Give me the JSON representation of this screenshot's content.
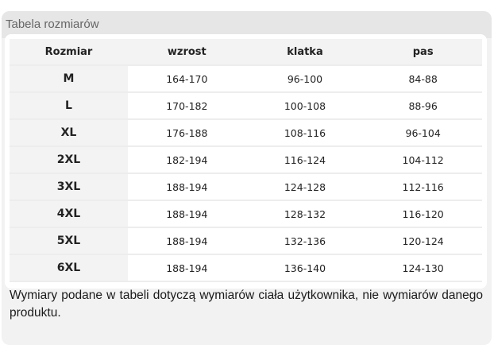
{
  "title": "Tabela rozmiarów",
  "headers": [
    "Rozmiar",
    "wzrost",
    "klatka",
    "pas"
  ],
  "rows": [
    [
      "M",
      "164-170",
      "96-100",
      "84-88"
    ],
    [
      "L",
      "170-182",
      "100-108",
      "88-96"
    ],
    [
      "XL",
      "176-188",
      "108-116",
      "96-104"
    ],
    [
      "2XL",
      "182-194",
      "116-124",
      "104-112"
    ],
    [
      "3XL",
      "188-194",
      "124-128",
      "112-116"
    ],
    [
      "4XL",
      "188-194",
      "128-132",
      "116-120"
    ],
    [
      "5XL",
      "188-194",
      "132-136",
      "120-124"
    ],
    [
      "6XL",
      "188-194",
      "136-140",
      "124-130"
    ]
  ],
  "note": "Wymiary podane w tabeli dotyczą wymiarów ciała użytkownika, nie wymiarów danego produktu."
}
